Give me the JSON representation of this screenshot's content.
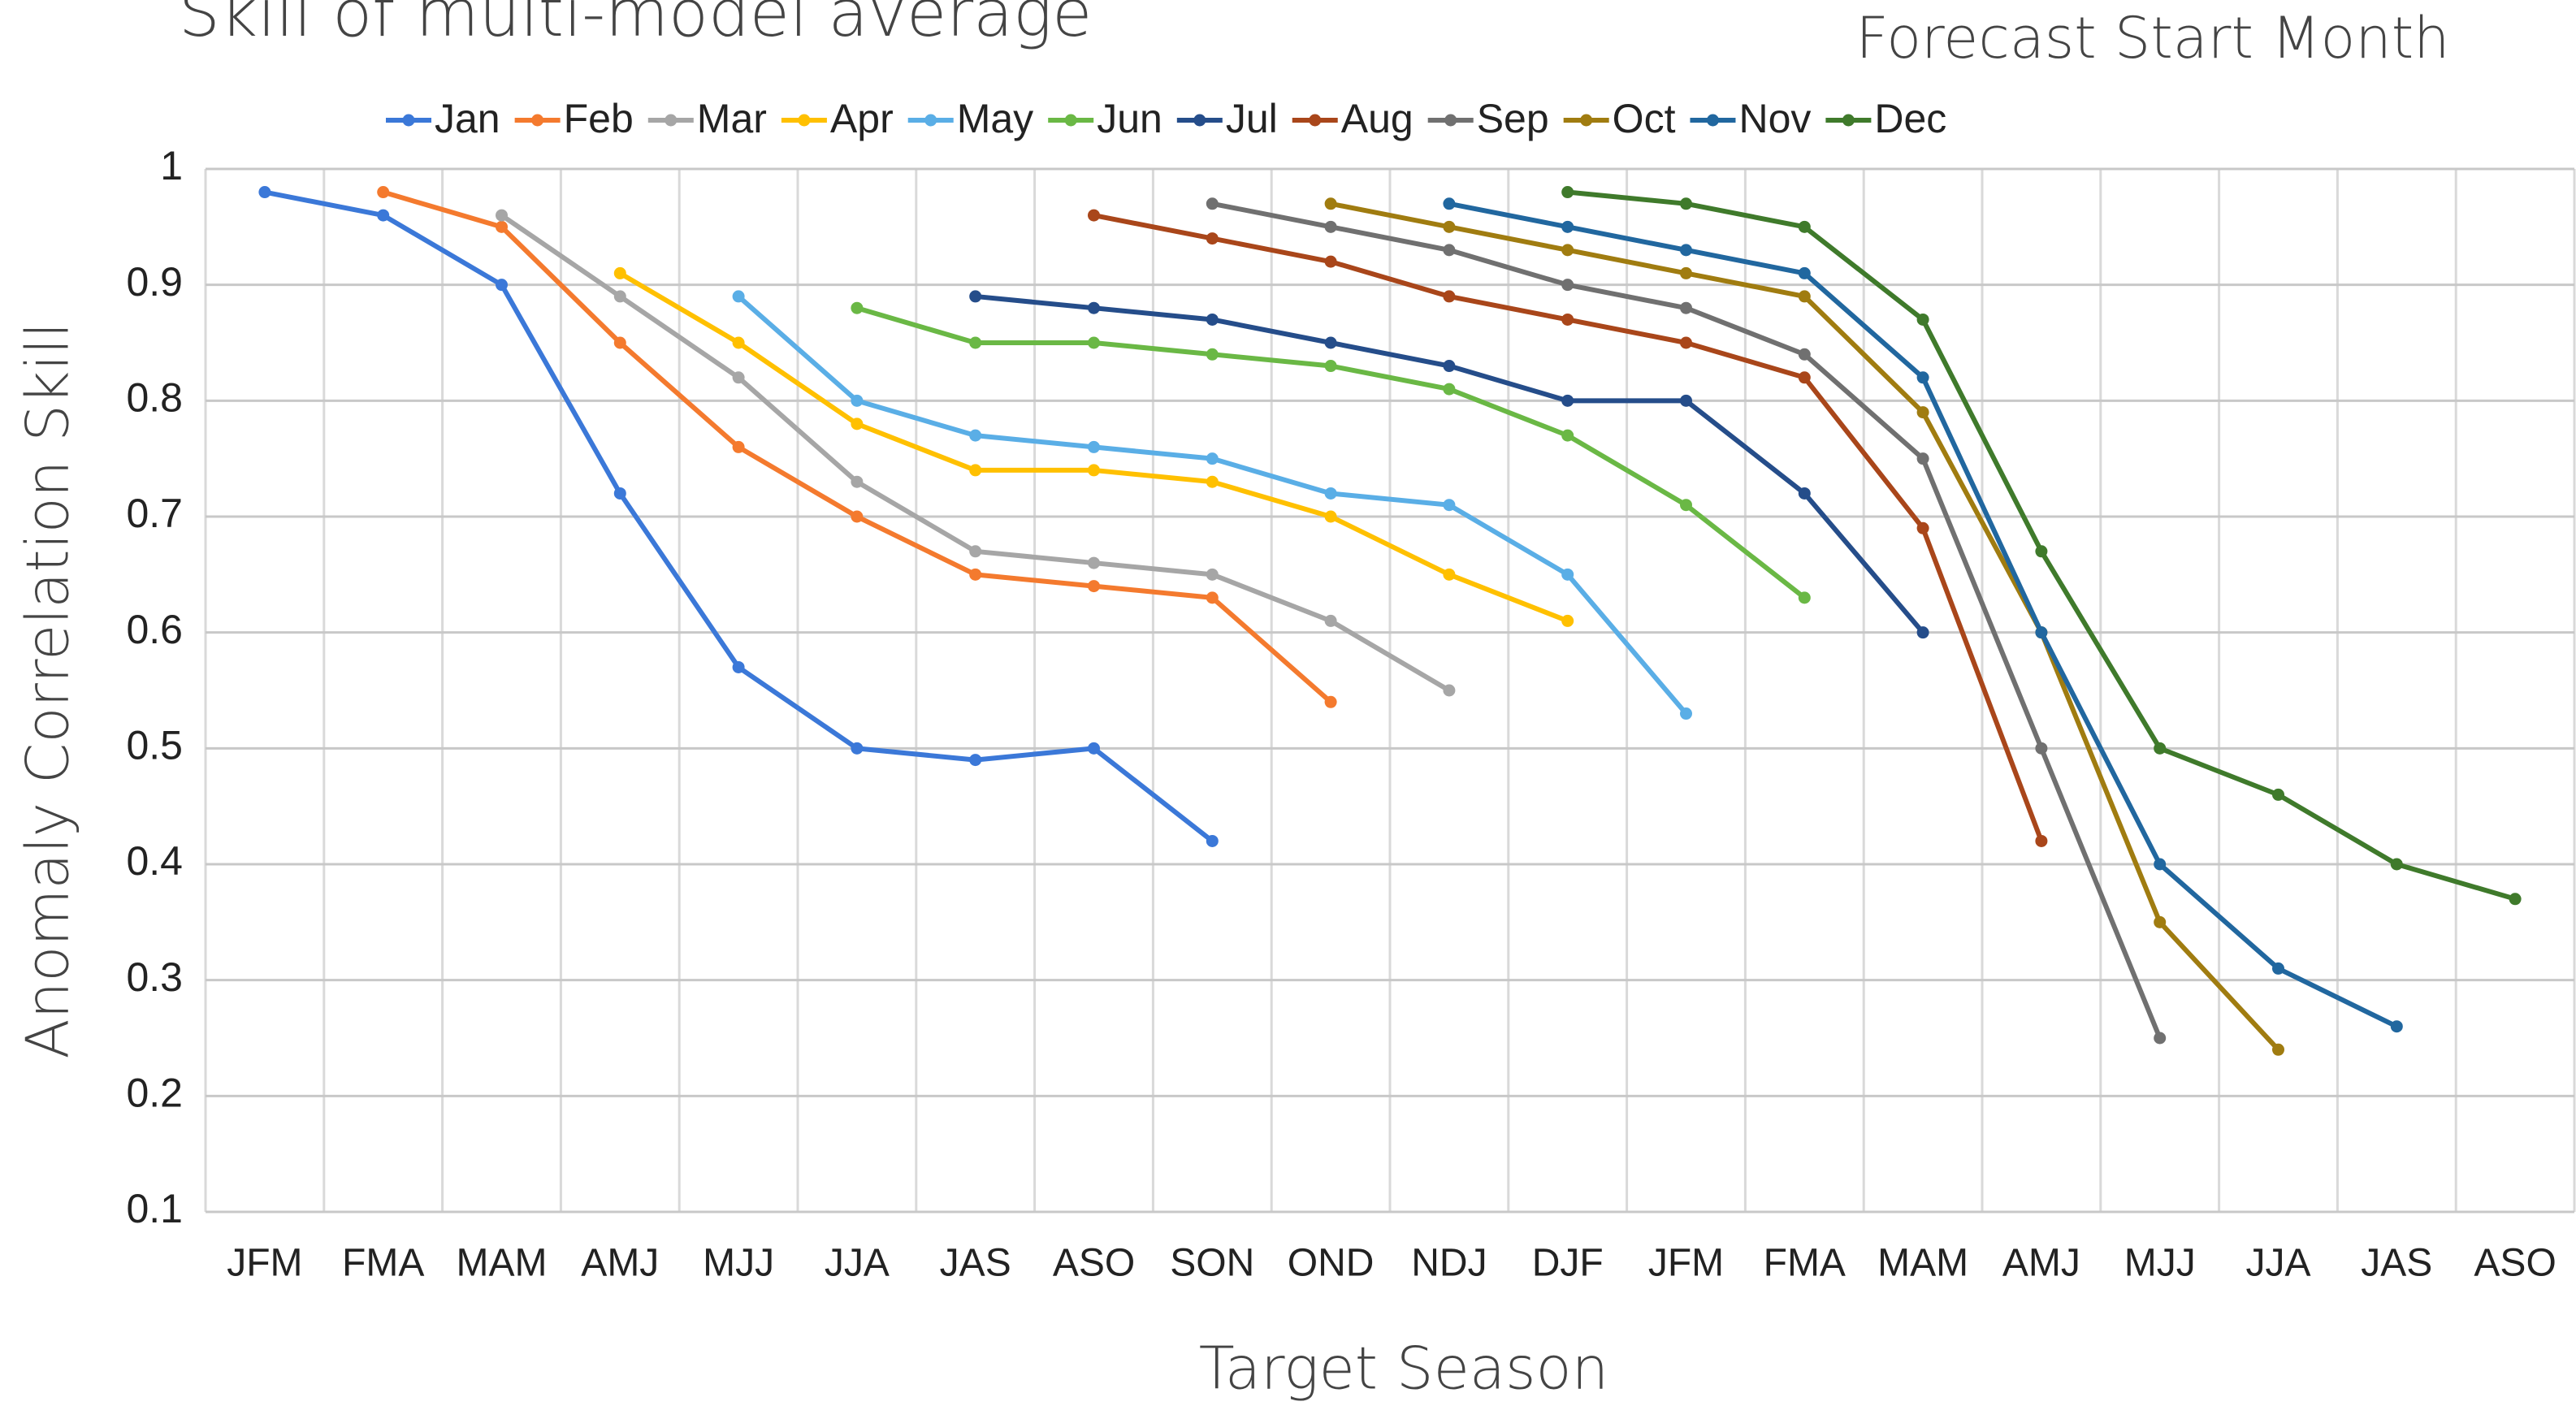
{
  "chart_data": {
    "type": "line",
    "title": "Skill of multi-model average",
    "legend_title": "Forecast Start Month",
    "x_label": "Target Season",
    "y_label": "Anomaly Correlation Skill",
    "legend": "top",
    "grid": true,
    "categories": [
      "JFM",
      "FMA",
      "MAM",
      "AMJ",
      "MJJ",
      "JJA",
      "JAS",
      "ASO",
      "SON",
      "OND",
      "NDJ",
      "DJF",
      "JFM",
      "FMA",
      "MAM",
      "AMJ",
      "MJJ",
      "JJA",
      "JAS",
      "ASO"
    ],
    "ylim": [
      0.1,
      1
    ],
    "yticks": [
      0.1,
      0.2,
      0.3,
      0.4,
      0.5,
      0.6,
      0.7,
      0.8,
      0.9,
      1
    ],
    "series": [
      {
        "name": "Jan",
        "color": "#3b78d8",
        "values": [
          0.98,
          0.96,
          0.9,
          0.72,
          0.57,
          0.5,
          0.49,
          0.5,
          0.42,
          null,
          null,
          null,
          null,
          null,
          null,
          null,
          null,
          null,
          null,
          null
        ]
      },
      {
        "name": "Feb",
        "color": "#f47a2e",
        "values": [
          null,
          0.98,
          0.95,
          0.85,
          0.76,
          0.7,
          0.65,
          0.64,
          0.63,
          0.54,
          null,
          null,
          null,
          null,
          null,
          null,
          null,
          null,
          null,
          null
        ]
      },
      {
        "name": "Mar",
        "color": "#a6a6a6",
        "values": [
          null,
          null,
          0.96,
          0.89,
          0.82,
          0.73,
          0.67,
          0.66,
          0.65,
          0.61,
          0.55,
          null,
          null,
          null,
          null,
          null,
          null,
          null,
          null,
          null
        ]
      },
      {
        "name": "Apr",
        "color": "#ffc000",
        "values": [
          null,
          null,
          null,
          0.91,
          0.85,
          0.78,
          0.74,
          0.74,
          0.73,
          0.7,
          0.65,
          0.61,
          null,
          null,
          null,
          null,
          null,
          null,
          null,
          null
        ]
      },
      {
        "name": "May",
        "color": "#5aaee6",
        "values": [
          null,
          null,
          null,
          null,
          0.89,
          0.8,
          0.77,
          0.76,
          0.75,
          0.72,
          0.71,
          0.65,
          0.53,
          null,
          null,
          null,
          null,
          null,
          null,
          null
        ]
      },
      {
        "name": "Jun",
        "color": "#6ab845",
        "values": [
          null,
          null,
          null,
          null,
          null,
          0.88,
          0.85,
          0.85,
          0.84,
          0.83,
          0.81,
          0.77,
          0.71,
          0.63,
          null,
          null,
          null,
          null,
          null,
          null
        ]
      },
      {
        "name": "Jul",
        "color": "#254d8a",
        "values": [
          null,
          null,
          null,
          null,
          null,
          null,
          0.89,
          0.88,
          0.87,
          0.85,
          0.83,
          0.8,
          0.8,
          0.72,
          0.6,
          null,
          null,
          null,
          null,
          null
        ]
      },
      {
        "name": "Aug",
        "color": "#a9461a",
        "values": [
          null,
          null,
          null,
          null,
          null,
          null,
          null,
          0.96,
          0.94,
          0.92,
          0.89,
          0.87,
          0.85,
          0.82,
          0.69,
          0.42,
          null,
          null,
          null,
          null
        ]
      },
      {
        "name": "Sep",
        "color": "#707070",
        "values": [
          null,
          null,
          null,
          null,
          null,
          null,
          null,
          null,
          0.97,
          0.95,
          0.93,
          0.9,
          0.88,
          0.84,
          0.75,
          0.5,
          0.25,
          null,
          null,
          null
        ]
      },
      {
        "name": "Oct",
        "color": "#a07c10",
        "values": [
          null,
          null,
          null,
          null,
          null,
          null,
          null,
          null,
          null,
          0.97,
          0.95,
          0.93,
          0.91,
          0.89,
          0.79,
          0.6,
          0.35,
          0.24,
          null,
          null
        ]
      },
      {
        "name": "Nov",
        "color": "#21679f",
        "values": [
          null,
          null,
          null,
          null,
          null,
          null,
          null,
          null,
          null,
          null,
          0.97,
          0.95,
          0.93,
          0.91,
          0.82,
          0.6,
          0.4,
          0.31,
          0.26,
          null
        ]
      },
      {
        "name": "Dec",
        "color": "#3f7a2b",
        "values": [
          null,
          null,
          null,
          null,
          null,
          null,
          null,
          null,
          null,
          null,
          null,
          0.98,
          0.97,
          0.95,
          0.87,
          0.67,
          0.5,
          0.46,
          0.4,
          0.37
        ]
      }
    ]
  }
}
